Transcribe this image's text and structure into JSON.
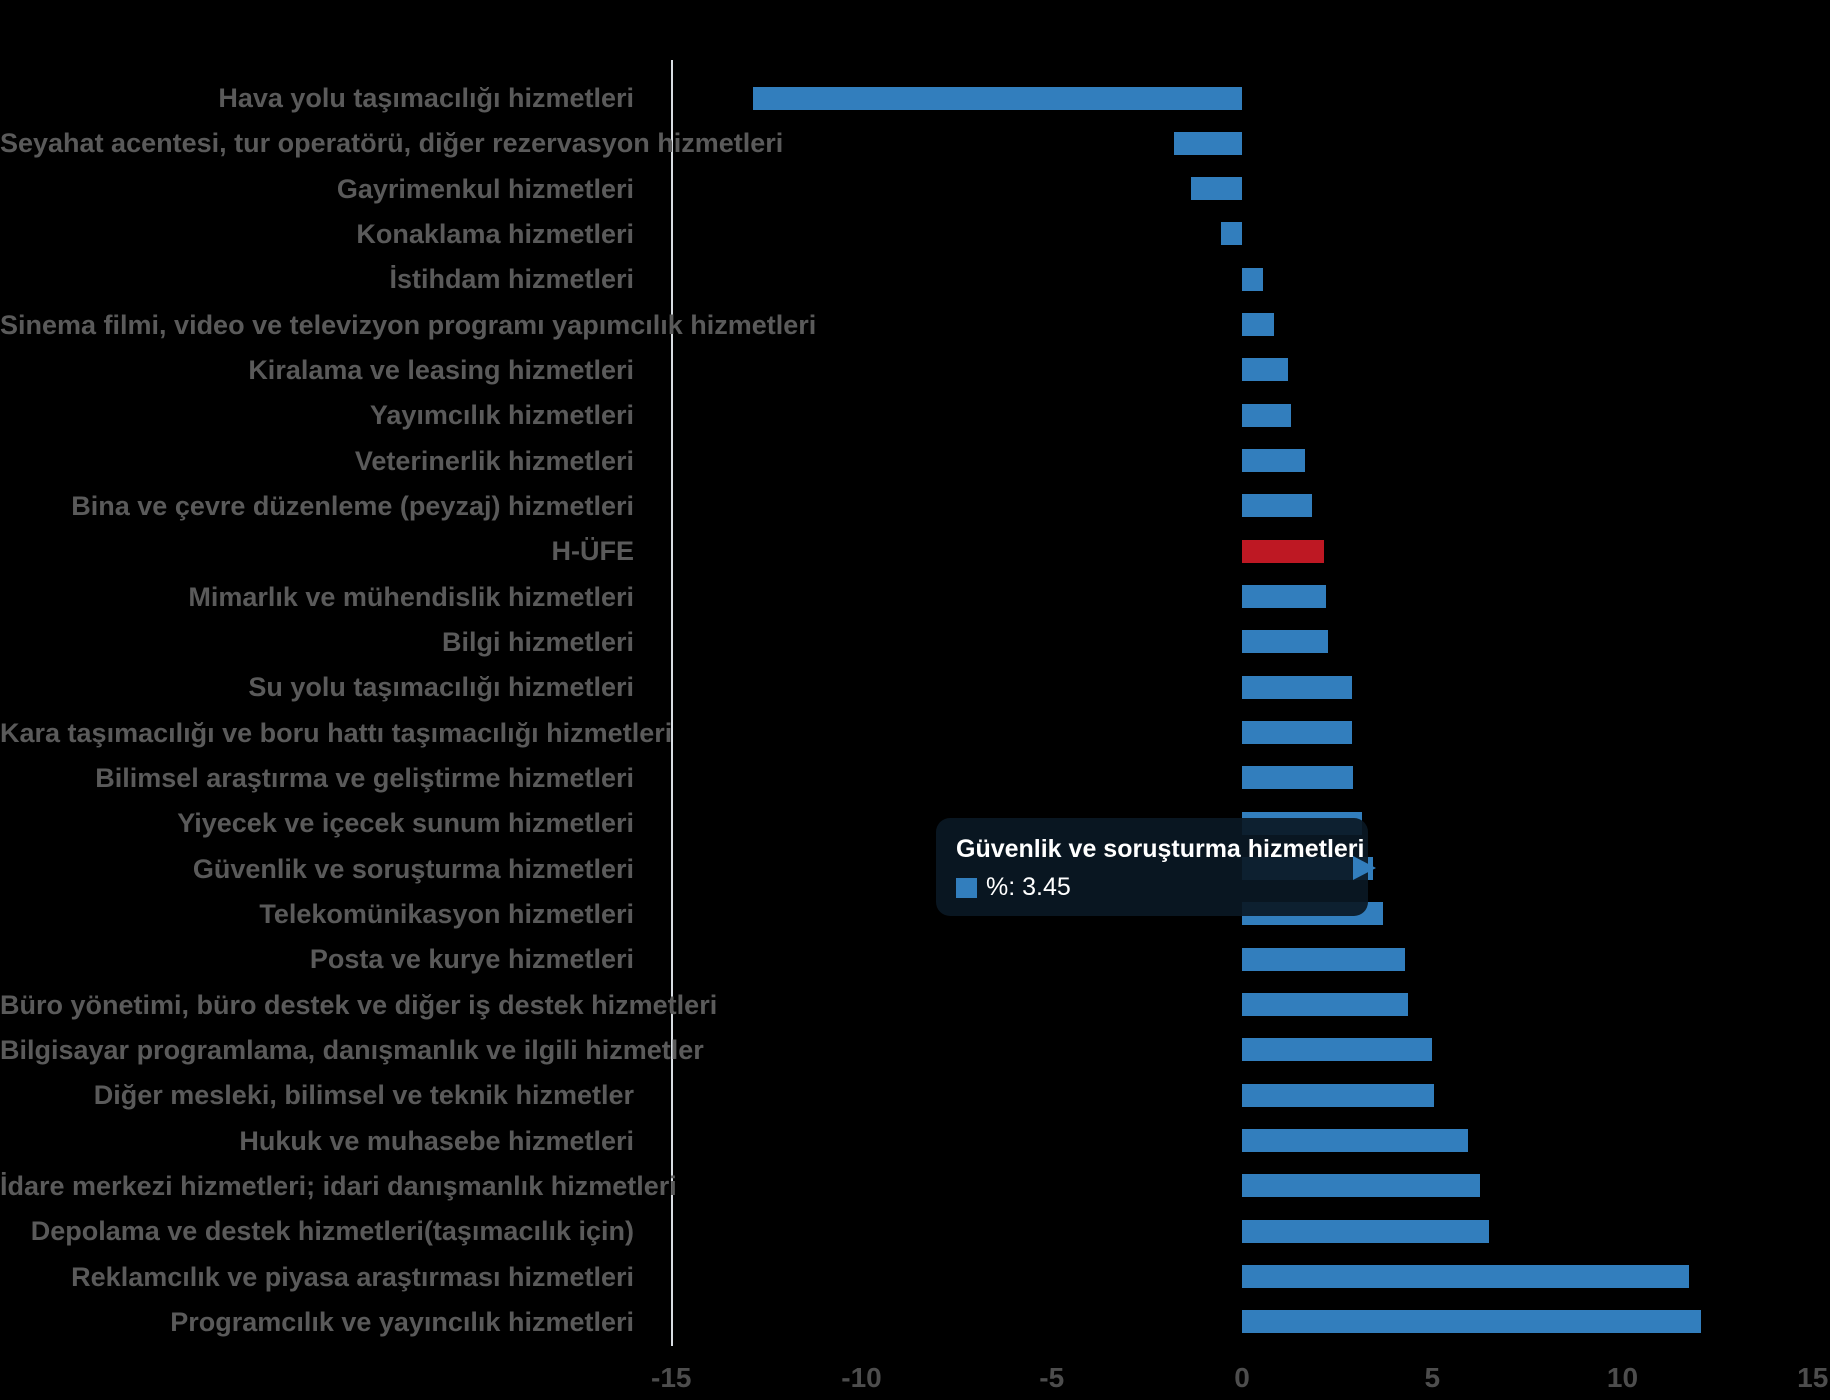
{
  "chart_data": {
    "type": "bar",
    "orientation": "horizontal",
    "title": "",
    "xlabel": "",
    "ylabel": "",
    "xlim": [
      -15,
      15
    ],
    "x_ticks": [
      -15,
      -10,
      -5,
      0,
      5,
      10,
      15
    ],
    "grid": false,
    "bar_color": "#327ebd",
    "highlight_color": "#be1823",
    "highlighted_category": "H-ÜFE",
    "hovered_category": "Güvenlik ve soruşturma hizmetleri",
    "categories": [
      "Hava yolu taşımacılığı hizmetleri",
      "Seyahat acentesi, tur operatörü, diğer rezervasyon hizmetleri",
      "Gayrimenkul hizmetleri",
      "Konaklama hizmetleri",
      "İstihdam hizmetleri",
      "Sinema filmi, video ve televizyon programı yapımcılık hizmetleri",
      "Kiralama ve leasing hizmetleri",
      "Yayımcılık hizmetleri",
      "Veterinerlik hizmetleri",
      "Bina ve çevre düzenleme (peyzaj) hizmetleri",
      "H-ÜFE",
      "Mimarlık ve mühendislik hizmetleri",
      "Bilgi hizmetleri",
      "Su yolu taşımacılığı hizmetleri",
      "Kara taşımacılığı ve boru hattı taşımacılığı hizmetleri",
      "Bilimsel araştırma ve geliştirme hizmetleri",
      "Yiyecek ve içecek sunum hizmetleri",
      "Güvenlik ve soruşturma hizmetleri",
      "Telekomünikasyon hizmetleri",
      "Posta ve kurye hizmetleri",
      "Büro yönetimi, büro destek ve diğer iş destek hizmetleri",
      "Bilgisayar programlama, danışmanlık ve ilgili hizmetler",
      "Diğer mesleki, bilimsel ve teknik hizmetler",
      "Hukuk ve muhasebe hizmetleri",
      "İdare merkezi hizmetleri; idari danışmanlık hizmetleri",
      "Depolama ve destek hizmetleri(taşımacılık için)",
      "Reklamcılık ve piyasa araştırması hizmetleri",
      "Programcılık ve yayıncılık hizmetleri"
    ],
    "values": [
      -12.85,
      -1.8,
      -1.35,
      -0.55,
      0.55,
      0.85,
      1.2,
      1.3,
      1.65,
      1.85,
      2.15,
      2.2,
      2.25,
      2.88,
      2.9,
      2.91,
      3.15,
      3.45,
      3.7,
      4.28,
      4.35,
      5.0,
      5.05,
      5.95,
      6.25,
      6.5,
      11.75,
      12.05
    ]
  },
  "tooltip": {
    "title": "Güvenlik ve soruşturma hizmetleri",
    "value_label": "%: 3.45",
    "swatch_color": "#327ebd"
  },
  "colors": {
    "background": "#000000",
    "axis_line": "#d8dde2",
    "label_text": "#5a5a5a",
    "tick_text": "#4d4d4d",
    "bar_blue": "#327ebd",
    "bar_red": "#be1823",
    "tooltip_bg": "rgba(10,24,36,0.92)",
    "tooltip_text": "#ffffff"
  }
}
